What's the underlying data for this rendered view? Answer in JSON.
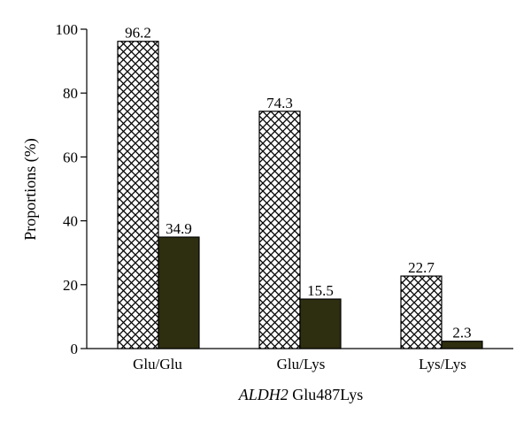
{
  "chart_data": {
    "type": "bar",
    "categories": [
      "Glu/Glu",
      "Glu/Lys",
      "Lys/Lys"
    ],
    "series": [
      {
        "pattern": "crosshatch",
        "fill": "#ffffff",
        "values": [
          96.2,
          74.3,
          22.7
        ]
      },
      {
        "pattern": "solid",
        "fill": "#2e2e10",
        "values": [
          34.9,
          15.5,
          2.3
        ]
      }
    ],
    "data_labels": [
      [
        "96.2",
        "74.3",
        "22.7"
      ],
      [
        "34.9",
        "15.5",
        "2.3"
      ]
    ],
    "yticks": [
      0,
      20,
      40,
      60,
      80,
      100
    ],
    "ytick_labels": [
      "0",
      "20",
      "40",
      "60",
      "80",
      "100"
    ],
    "ylim": [
      0,
      100
    ],
    "ylabel": "Proportions (%)",
    "xlabel_italic": "ALDH2",
    "xlabel_rest": " Glu487Lys",
    "legend": "none",
    "grid": false
  }
}
